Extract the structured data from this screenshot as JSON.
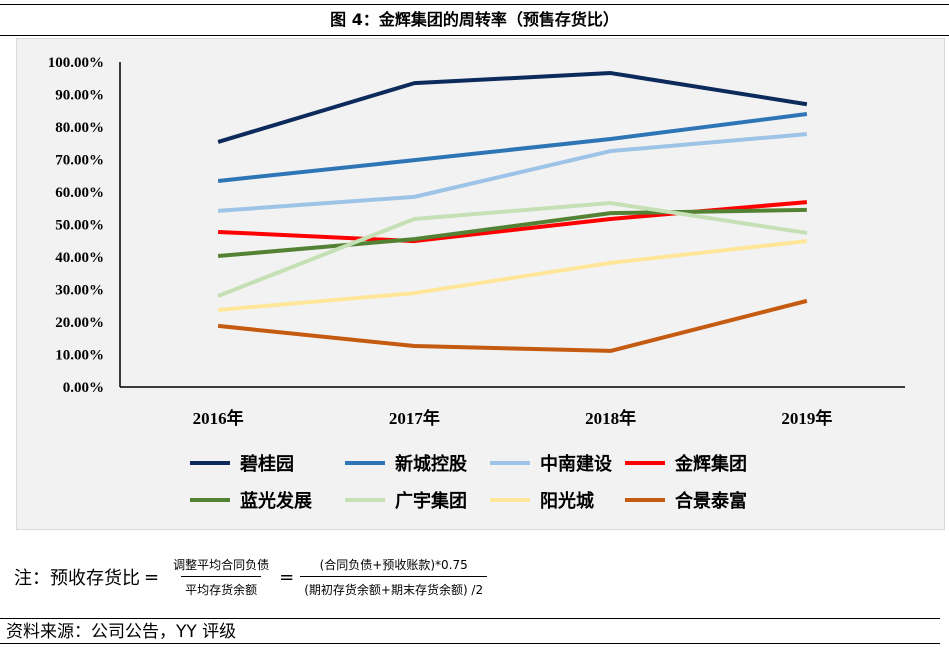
{
  "title": "图 4：金辉集团的周转率（预售存货比）",
  "chart_data": {
    "type": "line",
    "title": "",
    "categories": [
      "2016年",
      "2017年",
      "2018年",
      "2019年"
    ],
    "ylim": [
      0,
      100
    ],
    "yticks": [
      "0.00%",
      "10.00%",
      "20.00%",
      "30.00%",
      "40.00%",
      "50.00%",
      "60.00%",
      "70.00%",
      "80.00%",
      "90.00%",
      "100.00%"
    ],
    "grid": false,
    "legend": "bottom",
    "series": [
      {
        "name": "碧桂园",
        "color": "#0d2a5c",
        "values": [
          75.4,
          93.5,
          96.6,
          87.0
        ]
      },
      {
        "name": "新城控股",
        "color": "#2e75b6",
        "values": [
          63.4,
          69.8,
          76.3,
          84.0
        ]
      },
      {
        "name": "中南建设",
        "color": "#9dc3e6",
        "values": [
          54.2,
          58.5,
          72.6,
          77.8
        ]
      },
      {
        "name": "金辉集团",
        "color": "#ff0000",
        "values": [
          47.7,
          44.9,
          51.7,
          56.9
        ]
      },
      {
        "name": "蓝光发展",
        "color": "#548235",
        "values": [
          40.3,
          45.5,
          53.5,
          54.5
        ]
      },
      {
        "name": "广宇集团",
        "color": "#c5e0b4",
        "values": [
          28.0,
          51.7,
          56.6,
          47.4
        ]
      },
      {
        "name": "阳光城",
        "color": "#ffe699",
        "values": [
          23.7,
          28.9,
          38.2,
          44.9
        ]
      },
      {
        "name": "合景泰富",
        "color": "#c55a11",
        "values": [
          18.8,
          12.6,
          11.1,
          26.5
        ]
      }
    ]
  },
  "note": {
    "label": "注：预收存货比",
    "eq": "=",
    "num1": "调整平均合同负债",
    "den1": "平均存货余额",
    "num2": "(合同负债+预收账款)*0.75",
    "den2": "(期初存货余额+期末存货余额) /2"
  },
  "source": "资料来源：公司公告，YY 评级"
}
